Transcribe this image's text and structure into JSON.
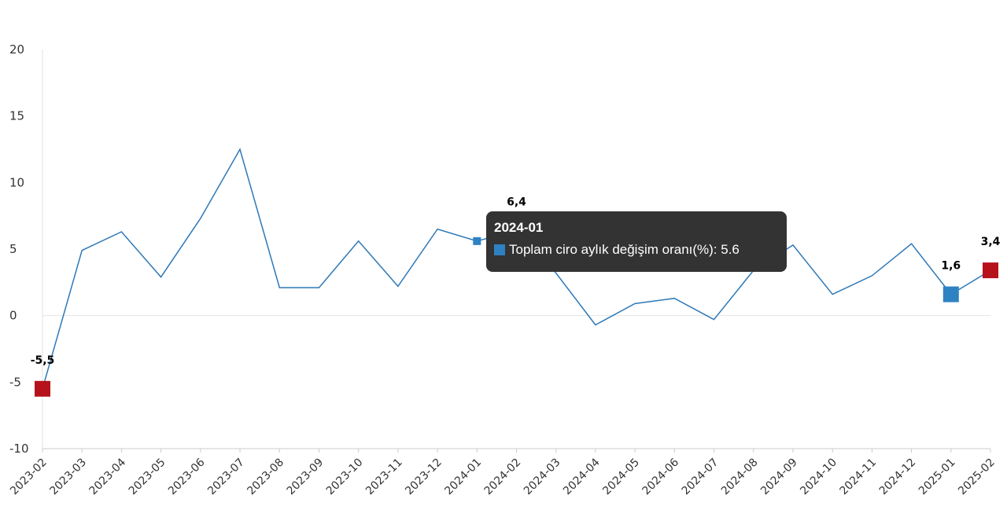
{
  "chart_data": {
    "type": "line",
    "title": "",
    "xlabel": "",
    "ylabel": "",
    "ylim": [
      -10,
      20
    ],
    "yticks": [
      20,
      15,
      10,
      5,
      0,
      -5,
      -10
    ],
    "categories": [
      "2023-02",
      "2023-03",
      "2023-04",
      "2023-05",
      "2023-06",
      "2023-07",
      "2023-08",
      "2023-09",
      "2023-10",
      "2023-11",
      "2023-12",
      "2024-01",
      "2024-02",
      "2024-03",
      "2024-04",
      "2024-05",
      "2024-06",
      "2024-07",
      "2024-08",
      "2024-09",
      "2024-10",
      "2024-11",
      "2024-12",
      "2025-01",
      "2025-02"
    ],
    "series": [
      {
        "name": "Toplam ciro aylık değişim oranı(%)",
        "color": "#2e78b7",
        "values": [
          -5.5,
          4.9,
          6.3,
          2.9,
          7.3,
          12.5,
          2.1,
          2.1,
          5.6,
          2.2,
          6.5,
          5.6,
          6.4,
          3.2,
          -0.7,
          0.9,
          1.3,
          -0.3,
          3.4,
          5.3,
          1.6,
          3.0,
          5.4,
          1.6,
          3.4
        ]
      }
    ],
    "highlighted_points": [
      {
        "index": 0,
        "label": "-5,5",
        "color": "#b5121b"
      },
      {
        "index": 12,
        "label": "6,4",
        "color": "#b5121b"
      },
      {
        "index": 23,
        "label": "1,6",
        "color": "#2e82c2"
      },
      {
        "index": 24,
        "label": "3,4",
        "color": "#b5121b"
      }
    ],
    "grid": false,
    "zero_line": true
  },
  "tooltip": {
    "title": "2024-01",
    "row": "Toplam ciro aylık değişim oranı(%): 5.6",
    "swatch_color": "#2e82c2",
    "hover_index": 11
  }
}
